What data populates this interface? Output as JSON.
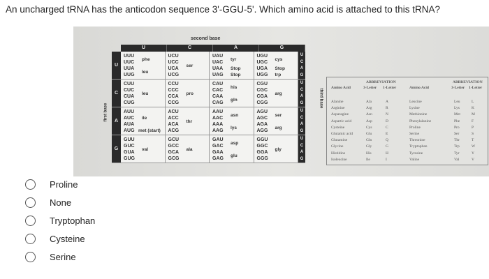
{
  "question": "An uncharged tRNA has the anticodon sequence 3'-GGU-5'. Which amino acid is attached to this tRNA?",
  "codon_table": {
    "second_base_label": "second base",
    "first_base_label": "first base",
    "third_base_label": "third base",
    "bases": [
      "U",
      "C",
      "A",
      "G"
    ],
    "rows": [
      [
        {
          "codons": [
            "UUU",
            "UUC",
            "UUA",
            "UUG"
          ],
          "labels": [
            {
              "text": "phe",
              "pos": 0.5
            },
            {
              "text": "leu",
              "pos": 2.5
            }
          ]
        },
        {
          "codons": [
            "UCU",
            "UCC",
            "UCA",
            "UCG"
          ],
          "labels": [
            {
              "text": "ser",
              "pos": 1.5
            }
          ]
        },
        {
          "codons": [
            "UAU",
            "UAC",
            "UAA",
            "UAG"
          ],
          "labels": [
            {
              "text": "tyr",
              "pos": 0.5
            },
            {
              "text": "Stop",
              "pos": 2
            },
            {
              "text": "Stop",
              "pos": 3
            }
          ]
        },
        {
          "codons": [
            "UGU",
            "UGC",
            "UGA",
            "UGG"
          ],
          "labels": [
            {
              "text": "cys",
              "pos": 0.5
            },
            {
              "text": "Stop",
              "pos": 2
            },
            {
              "text": "trp",
              "pos": 3
            }
          ]
        }
      ],
      [
        {
          "codons": [
            "CUU",
            "CUC",
            "CUA",
            "CUG"
          ],
          "labels": [
            {
              "text": "leu",
              "pos": 1.5
            }
          ]
        },
        {
          "codons": [
            "CCU",
            "CCC",
            "CCA",
            "CCG"
          ],
          "labels": [
            {
              "text": "pro",
              "pos": 1.5
            }
          ]
        },
        {
          "codons": [
            "CAU",
            "CAC",
            "CAA",
            "CAG"
          ],
          "labels": [
            {
              "text": "his",
              "pos": 0.5
            },
            {
              "text": "gln",
              "pos": 2.5
            }
          ]
        },
        {
          "codons": [
            "CGU",
            "CGC",
            "CGA",
            "CGG"
          ],
          "labels": [
            {
              "text": "arg",
              "pos": 1.5
            }
          ]
        }
      ],
      [
        {
          "codons": [
            "AUU",
            "AUC",
            "AUA",
            "AUG"
          ],
          "labels": [
            {
              "text": "ile",
              "pos": 1
            },
            {
              "text": "met (start)",
              "pos": 3
            }
          ]
        },
        {
          "codons": [
            "ACU",
            "ACC",
            "ACA",
            "ACG"
          ],
          "labels": [
            {
              "text": "thr",
              "pos": 1.5
            }
          ]
        },
        {
          "codons": [
            "AAU",
            "AAC",
            "AAA",
            "AAG"
          ],
          "labels": [
            {
              "text": "asn",
              "pos": 0.5
            },
            {
              "text": "lys",
              "pos": 2.5
            }
          ]
        },
        {
          "codons": [
            "AGU",
            "AGC",
            "AGA",
            "AGG"
          ],
          "labels": [
            {
              "text": "ser",
              "pos": 0.5
            },
            {
              "text": "arg",
              "pos": 2.5
            }
          ]
        }
      ],
      [
        {
          "codons": [
            "GUU",
            "GUC",
            "GUA",
            "GUG"
          ],
          "labels": [
            {
              "text": "val",
              "pos": 1.5
            }
          ]
        },
        {
          "codons": [
            "GCU",
            "GCC",
            "GCA",
            "GCG"
          ],
          "labels": [
            {
              "text": "ala",
              "pos": 1.5
            }
          ]
        },
        {
          "codons": [
            "GAU",
            "GAC",
            "GAA",
            "GAG"
          ],
          "labels": [
            {
              "text": "asp",
              "pos": 0.5
            },
            {
              "text": "glu",
              "pos": 2.5
            }
          ]
        },
        {
          "codons": [
            "GGU",
            "GGC",
            "GGA",
            "GGG"
          ],
          "labels": [
            {
              "text": "gly",
              "pos": 1.5
            }
          ]
        }
      ]
    ]
  },
  "amino_table": {
    "headers": {
      "abbreviation": "ABBREVIATION",
      "amino_acid": "Amino Acid",
      "three": "3-Letter",
      "one": "1-Letter"
    },
    "left": [
      [
        "Alanine",
        "Ala",
        "A"
      ],
      [
        "Arginine",
        "Arg",
        "R"
      ],
      [
        "Asparagine",
        "Asn",
        "N"
      ],
      [
        "Aspartic acid",
        "Asp",
        "D"
      ],
      [
        "Cysteine",
        "Cys",
        "C"
      ],
      [
        "Glutamic acid",
        "Glu",
        "E"
      ],
      [
        "Glutamine",
        "Gln",
        "Q"
      ],
      [
        "Glycine",
        "Gly",
        "G"
      ],
      [
        "Histidine",
        "His",
        "H"
      ],
      [
        "Isoleucine",
        "Ile",
        "I"
      ]
    ],
    "right": [
      [
        "Leucine",
        "Leu",
        "L"
      ],
      [
        "Lysine",
        "Lys",
        "K"
      ],
      [
        "Methionine",
        "Met",
        "M"
      ],
      [
        "Phenylalanine",
        "Phe",
        "F"
      ],
      [
        "Proline",
        "Pro",
        "P"
      ],
      [
        "Serine",
        "Ser",
        "S"
      ],
      [
        "Threonine",
        "Thr",
        "T"
      ],
      [
        "Tryptophan",
        "Trp",
        "W"
      ],
      [
        "Tyrosine",
        "Tyr",
        "Y"
      ],
      [
        "Valine",
        "Val",
        "V"
      ]
    ]
  },
  "options": [
    "Proline",
    "None",
    "Tryptophan",
    "Cysteine",
    "Serine"
  ]
}
